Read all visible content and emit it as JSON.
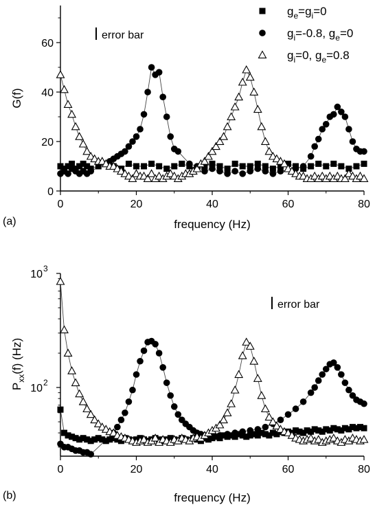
{
  "chart_data": [
    {
      "type": "scatter",
      "panel_label": "(a)",
      "xlabel": "frequency (Hz)",
      "ylabel": "G(f)",
      "xlim": [
        0,
        80
      ],
      "ylim": [
        0,
        75
      ],
      "xticks": [
        0,
        20,
        40,
        60,
        80
      ],
      "yticks": [
        0,
        20,
        40,
        60
      ],
      "annotation": "error bar",
      "legend_position": "top-right",
      "legend": [
        {
          "marker": "square",
          "parts": [
            [
              "g",
              ""
            ],
            [
              "e",
              "sub"
            ],
            [
              "=g",
              ""
            ],
            [
              "i",
              "sub"
            ],
            [
              "=0",
              ""
            ]
          ]
        },
        {
          "marker": "circle",
          "parts": [
            [
              "g",
              ""
            ],
            [
              "i",
              "sub"
            ],
            [
              "=-0.8, g",
              ""
            ],
            [
              "e",
              "sub"
            ],
            [
              "=0",
              ""
            ]
          ]
        },
        {
          "marker": "triangle",
          "parts": [
            [
              "g",
              ""
            ],
            [
              "i",
              "sub"
            ],
            [
              "=0, g",
              ""
            ],
            [
              "e",
              "sub"
            ],
            [
              "=0.8",
              ""
            ]
          ]
        }
      ],
      "series": [
        {
          "marker": "square",
          "x": [
            0,
            1,
            2,
            3,
            4,
            5,
            6,
            7,
            8,
            10,
            12,
            14,
            16,
            18,
            20,
            22,
            24,
            26,
            28,
            30,
            32,
            34,
            36,
            38,
            40,
            42,
            44,
            46,
            48,
            50,
            52,
            54,
            56,
            58,
            60,
            62,
            64,
            66,
            68,
            70,
            72,
            74,
            76,
            78,
            80
          ],
          "y": [
            10,
            9,
            10,
            11,
            9,
            10,
            11,
            10,
            9,
            10,
            11,
            10,
            9,
            11,
            10,
            10,
            11,
            10,
            9,
            10,
            11,
            10,
            9,
            10,
            11,
            10,
            9,
            11,
            10,
            10,
            11,
            10,
            9,
            10,
            11,
            10,
            9,
            10,
            11,
            10,
            11,
            10,
            9,
            10,
            11
          ]
        },
        {
          "marker": "circle",
          "x": [
            0,
            1,
            2,
            3,
            4,
            5,
            6,
            7,
            8,
            13,
            14,
            15,
            16,
            17,
            18,
            19,
            20,
            21,
            22,
            23,
            24,
            25,
            26,
            27,
            28,
            29,
            30,
            31,
            34,
            36,
            38,
            40,
            42,
            44,
            46,
            48,
            50,
            52,
            54,
            56,
            58,
            62,
            64,
            66,
            67,
            68,
            69,
            70,
            71,
            72,
            73,
            74,
            75,
            76,
            77,
            78,
            79,
            80
          ],
          "y": [
            7,
            8,
            7,
            9,
            8,
            7,
            8,
            7,
            8,
            12,
            13,
            14,
            15,
            16,
            18,
            20,
            22,
            25,
            31,
            40,
            50,
            47,
            48,
            38,
            30,
            22,
            17,
            16,
            11,
            10,
            8,
            9,
            8,
            7,
            8,
            7,
            8,
            9,
            8,
            7,
            8,
            9,
            10,
            14,
            18,
            21,
            25,
            27,
            30,
            31,
            34,
            32,
            30,
            25,
            20,
            17,
            16,
            16
          ]
        },
        {
          "marker": "triangle",
          "x": [
            0,
            1,
            2,
            3,
            4,
            5,
            6,
            7,
            8,
            9,
            10,
            11,
            12,
            13,
            14,
            15,
            16,
            17,
            18,
            19,
            20,
            21,
            22,
            23,
            24,
            25,
            26,
            27,
            28,
            29,
            30,
            31,
            32,
            33,
            34,
            35,
            36,
            37,
            38,
            39,
            40,
            41,
            42,
            43,
            44,
            45,
            46,
            47,
            48,
            49,
            50,
            51,
            52,
            53,
            54,
            55,
            56,
            57,
            58,
            59,
            60,
            61,
            62,
            63,
            64,
            65,
            66,
            67,
            68,
            69,
            70,
            71,
            72,
            73,
            74,
            75,
            76,
            77,
            78,
            79,
            80
          ],
          "y": [
            47,
            41,
            35,
            31,
            26,
            22,
            19,
            16,
            14,
            13,
            12,
            12,
            11,
            10,
            10,
            9,
            8,
            7,
            6,
            5,
            7,
            6,
            6,
            5,
            7,
            5,
            6,
            5,
            6,
            7,
            6,
            5,
            6,
            7,
            7,
            8,
            9,
            11,
            12,
            14,
            16,
            18,
            20,
            22,
            26,
            30,
            34,
            38,
            44,
            49,
            46,
            40,
            33,
            26,
            20,
            16,
            14,
            13,
            12,
            11,
            9,
            8,
            7,
            6,
            6,
            5,
            5,
            6,
            5,
            6,
            5,
            6,
            5,
            6,
            5,
            5,
            7,
            6,
            5,
            6,
            5
          ]
        }
      ]
    },
    {
      "type": "scatter",
      "panel_label": "(b)",
      "xlabel": "frequency (Hz)",
      "ylabel_parts": [
        [
          "P",
          ""
        ],
        [
          "xx",
          "sub"
        ],
        [
          "(f) (Hz)",
          ""
        ]
      ],
      "yscale": "log",
      "xlim": [
        0,
        80
      ],
      "ylim": [
        25,
        1000
      ],
      "xticks": [
        0,
        20,
        40,
        60,
        80
      ],
      "yticks": [
        {
          "value": 100,
          "base": "10",
          "exp": "2"
        },
        {
          "value": 1000,
          "base": "10",
          "exp": "3"
        }
      ],
      "annotation": "error bar",
      "series": [
        {
          "marker": "square",
          "x": [
            0,
            1,
            2,
            3,
            4,
            5,
            6,
            7,
            8,
            9,
            10,
            11,
            12,
            13,
            14,
            15,
            16,
            17,
            18,
            19,
            20,
            21,
            22,
            23,
            24,
            25,
            26,
            27,
            28,
            29,
            30,
            31,
            32,
            33,
            34,
            35,
            36,
            37,
            38,
            39,
            40,
            41,
            42,
            43,
            44,
            45,
            46,
            47,
            48,
            49,
            50,
            51,
            52,
            53,
            54,
            55,
            56,
            57,
            58,
            59,
            60,
            61,
            62,
            63,
            64,
            65,
            66,
            67,
            68,
            69,
            70,
            71,
            72,
            73,
            74,
            75,
            76,
            77,
            78,
            79,
            80
          ],
          "y": [
            64,
            40,
            38,
            37,
            36,
            35,
            36,
            35,
            34,
            35,
            36,
            35,
            34,
            35,
            36,
            35,
            34,
            36,
            35,
            34,
            35,
            36,
            35,
            34,
            35,
            36,
            35,
            34,
            35,
            36,
            35,
            34,
            36,
            35,
            34,
            36,
            35,
            34,
            36,
            35,
            36,
            37,
            36,
            38,
            37,
            38,
            37,
            39,
            38,
            37,
            38,
            39,
            38,
            40,
            39,
            38,
            40,
            39,
            41,
            40,
            41,
            40,
            42,
            41,
            40,
            42,
            41,
            43,
            42,
            41,
            43,
            42,
            44,
            43,
            42,
            44,
            43,
            45,
            44,
            45,
            44
          ]
        },
        {
          "marker": "circle",
          "x": [
            0,
            1,
            2,
            3,
            4,
            5,
            6,
            7,
            8,
            14,
            15,
            16,
            17,
            18,
            19,
            20,
            21,
            22,
            23,
            24,
            25,
            26,
            27,
            28,
            29,
            30,
            31,
            32,
            33,
            34,
            35,
            36,
            37,
            38,
            40,
            42,
            44,
            46,
            48,
            50,
            52,
            54,
            56,
            58,
            60,
            62,
            64,
            66,
            67,
            68,
            69,
            70,
            71,
            72,
            73,
            74,
            75,
            76,
            77,
            78,
            79,
            80
          ],
          "y": [
            32,
            30,
            30,
            29,
            28,
            28,
            27,
            27,
            26,
            40,
            45,
            52,
            60,
            75,
            95,
            130,
            170,
            210,
            250,
            255,
            240,
            200,
            150,
            110,
            85,
            68,
            58,
            52,
            48,
            45,
            42,
            40,
            39,
            38,
            38,
            38,
            39,
            40,
            41,
            42,
            43,
            45,
            48,
            52,
            58,
            65,
            75,
            90,
            100,
            115,
            130,
            145,
            160,
            165,
            150,
            130,
            110,
            95,
            85,
            78,
            75,
            72
          ]
        },
        {
          "marker": "triangle",
          "x": [
            0,
            1,
            2,
            3,
            4,
            5,
            6,
            7,
            8,
            9,
            10,
            11,
            12,
            13,
            14,
            15,
            16,
            17,
            18,
            19,
            20,
            21,
            22,
            23,
            24,
            25,
            26,
            27,
            28,
            29,
            30,
            31,
            32,
            33,
            34,
            35,
            36,
            37,
            38,
            39,
            40,
            41,
            42,
            43,
            44,
            45,
            46,
            47,
            48,
            49,
            50,
            51,
            52,
            53,
            54,
            55,
            56,
            57,
            58,
            59,
            60,
            61,
            62,
            63,
            64,
            65,
            66,
            67,
            68,
            69,
            70,
            71,
            72,
            73,
            74,
            75,
            76,
            77,
            78,
            79,
            80
          ],
          "y": [
            850,
            320,
            200,
            140,
            110,
            88,
            75,
            65,
            58,
            52,
            48,
            45,
            43,
            41,
            40,
            38,
            37,
            36,
            35,
            34,
            33,
            34,
            35,
            33,
            34,
            36,
            33,
            35,
            34,
            33,
            35,
            34,
            36,
            35,
            34,
            36,
            37,
            36,
            38,
            40,
            42,
            44,
            47,
            52,
            60,
            72,
            95,
            130,
            190,
            250,
            230,
            170,
            120,
            85,
            65,
            55,
            50,
            46,
            43,
            41,
            40,
            38,
            36,
            35,
            34,
            35,
            36,
            34,
            35,
            33,
            34,
            35,
            36,
            34,
            33,
            35,
            34,
            36,
            35,
            34,
            35
          ]
        }
      ]
    }
  ]
}
